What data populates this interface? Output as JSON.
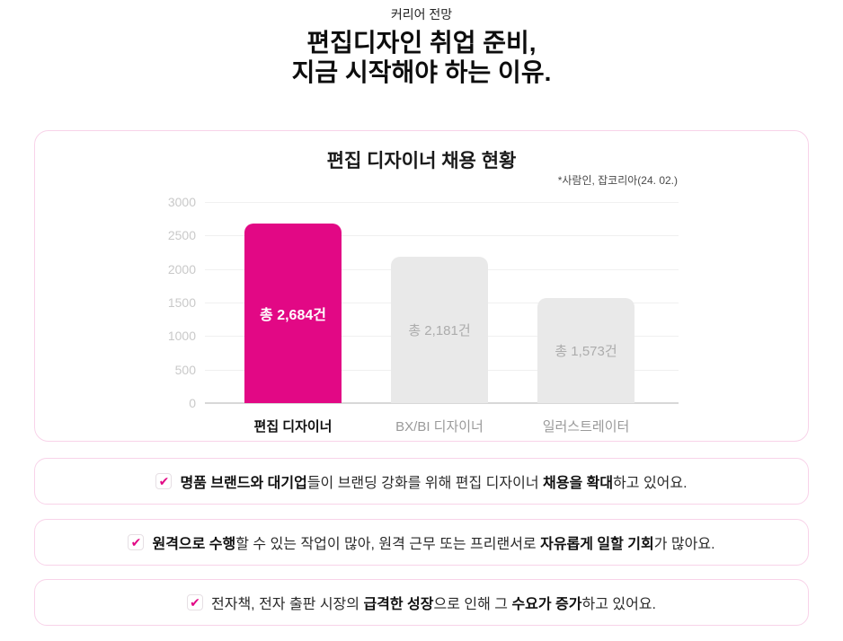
{
  "header": {
    "eyebrow": "커리어 전망",
    "title_line1": "편집디자인 취업 준비,",
    "title_line2": "지금 시작해야 하는 이유."
  },
  "chart_data": {
    "type": "bar",
    "title": "편집 디자이너 채용 현황",
    "source_note": "*사람인, 잡코리아(24. 02.)",
    "categories": [
      "편집 디자이너",
      "BX/BI 디자이너",
      "일러스트레이터"
    ],
    "values": [
      2684,
      2181,
      1573
    ],
    "bar_labels": [
      "총 2,684건",
      "총 2,181건",
      "총 1,573건"
    ],
    "highlighted_index": 0,
    "yticks": [
      0,
      500,
      1000,
      1500,
      2000,
      2500,
      3000
    ],
    "ylim": [
      0,
      3000
    ],
    "grid": true,
    "legend": "none",
    "colors": {
      "highlight": "#E20885",
      "default": "#E9E9E9"
    }
  },
  "callouts": [
    {
      "icon": "check-icon",
      "segments": [
        {
          "text": "명품 브랜드와 대기업",
          "bold": true
        },
        {
          "text": "들이 브랜딩 강화를 위해 편집 디자이너 ",
          "bold": false
        },
        {
          "text": "채용을 확대",
          "bold": true
        },
        {
          "text": "하고 있어요.",
          "bold": false
        }
      ]
    },
    {
      "icon": "check-icon",
      "segments": [
        {
          "text": "원격으로 수행",
          "bold": true
        },
        {
          "text": "할 수 있는 작업이 많아, 원격 근무 또는 프리랜서로 ",
          "bold": false
        },
        {
          "text": "자유롭게 일할 기회",
          "bold": true
        },
        {
          "text": "가 많아요.",
          "bold": false
        }
      ]
    },
    {
      "icon": "check-icon",
      "segments": [
        {
          "text": "전자책, 전자 출판 시장의 ",
          "bold": false
        },
        {
          "text": "급격한 성장",
          "bold": true
        },
        {
          "text": "으로 인해 그 ",
          "bold": false
        },
        {
          "text": "수요가 증가",
          "bold": true
        },
        {
          "text": "하고 있어요.",
          "bold": false
        }
      ]
    }
  ],
  "check_glyph": "✔"
}
